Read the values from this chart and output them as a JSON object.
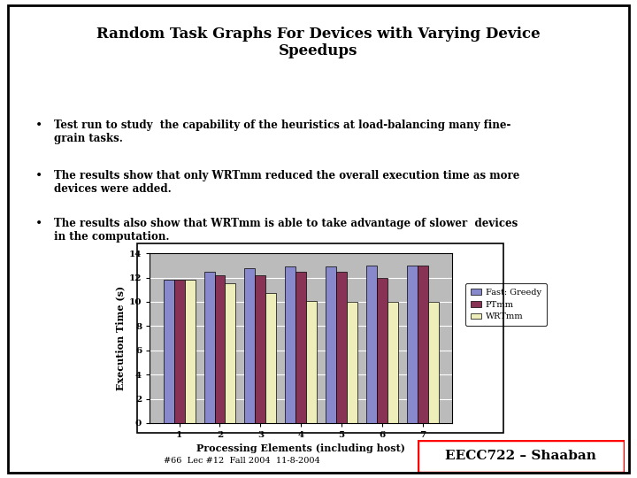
{
  "title": "Random Task Graphs For Devices with Varying Device\nSpeedups",
  "bullet1": "Test run to study  the capability of the heuristics at load-balancing many fine-\ngrain tasks.",
  "bullet2": "The results show that only WRTmm reduced the overall execution time as more\ndevices were added.",
  "bullet3": "The results also show that WRTmm is able to take advantage of slower  devices\nin the computation.",
  "categories": [
    1,
    2,
    3,
    4,
    5,
    6,
    7
  ],
  "fast_greedy": [
    11.8,
    12.5,
    12.8,
    12.9,
    12.9,
    13.0,
    13.0
  ],
  "ptmm": [
    11.8,
    12.2,
    12.2,
    12.5,
    12.5,
    12.0,
    13.0
  ],
  "wrtmm": [
    11.8,
    11.5,
    10.7,
    10.1,
    10.0,
    10.0,
    10.0
  ],
  "bar_color_fast": "#8888CC",
  "bar_color_ptmm": "#883355",
  "bar_color_wrtmm": "#EEEEBB",
  "ylabel": "Execution Time (s)",
  "xlabel": "Processing Elements (including host)",
  "ylim": [
    0,
    14
  ],
  "yticks": [
    0,
    2,
    4,
    6,
    8,
    10,
    12,
    14
  ],
  "legend_labels": [
    "Fast: Greedy",
    "PTmm",
    "WRTmm"
  ],
  "plot_bg": "#BBBBBB",
  "footer": "#66  Lec #12  Fall 2004  11-8-2004",
  "eecc_label": "EECC722 – Shaaban"
}
